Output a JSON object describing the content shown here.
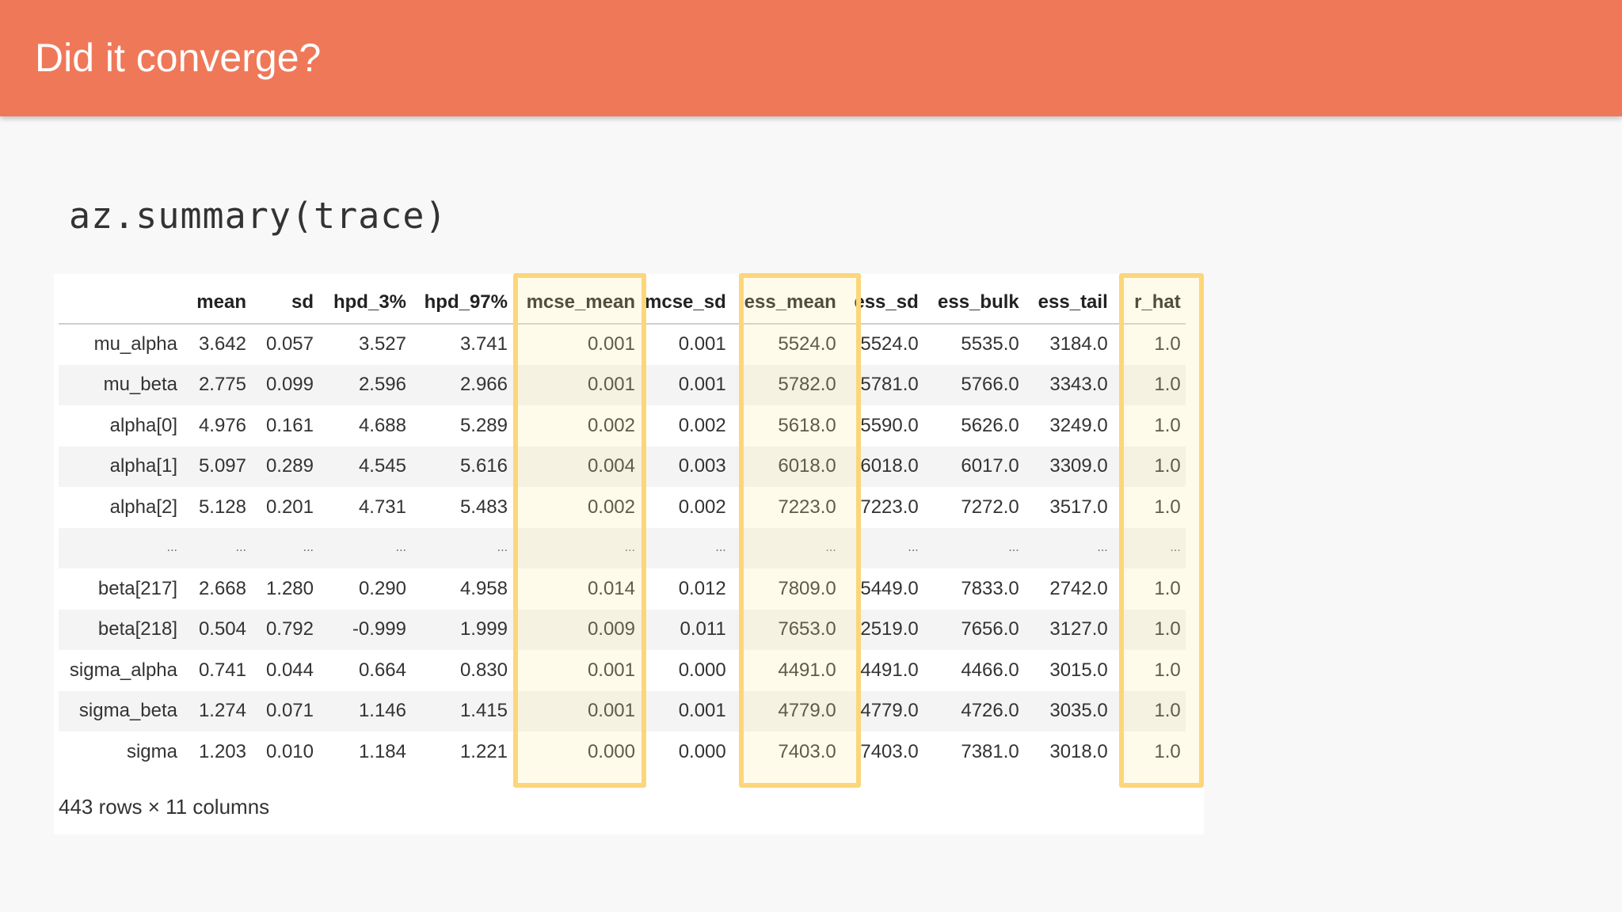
{
  "slide": {
    "title": "Did it converge?",
    "code": "az.summary(trace)"
  },
  "table": {
    "columns": [
      "",
      "mean",
      "sd",
      "hpd_3%",
      "hpd_97%",
      "mcse_mean",
      "mcse_sd",
      "ess_mean",
      "ess_sd",
      "ess_bulk",
      "ess_tail",
      "r_hat"
    ],
    "rows": [
      [
        "mu_alpha",
        "3.642",
        "0.057",
        "3.527",
        "3.741",
        "0.001",
        "0.001",
        "5524.0",
        "5524.0",
        "5535.0",
        "3184.0",
        "1.0"
      ],
      [
        "mu_beta",
        "2.775",
        "0.099",
        "2.596",
        "2.966",
        "0.001",
        "0.001",
        "5782.0",
        "5781.0",
        "5766.0",
        "3343.0",
        "1.0"
      ],
      [
        "alpha[0]",
        "4.976",
        "0.161",
        "4.688",
        "5.289",
        "0.002",
        "0.002",
        "5618.0",
        "5590.0",
        "5626.0",
        "3249.0",
        "1.0"
      ],
      [
        "alpha[1]",
        "5.097",
        "0.289",
        "4.545",
        "5.616",
        "0.004",
        "0.003",
        "6018.0",
        "6018.0",
        "6017.0",
        "3309.0",
        "1.0"
      ],
      [
        "alpha[2]",
        "5.128",
        "0.201",
        "4.731",
        "5.483",
        "0.002",
        "0.002",
        "7223.0",
        "7223.0",
        "7272.0",
        "3517.0",
        "1.0"
      ],
      [
        "...",
        "...",
        "...",
        "...",
        "...",
        "...",
        "...",
        "...",
        "...",
        "...",
        "...",
        "..."
      ],
      [
        "beta[217]",
        "2.668",
        "1.280",
        "0.290",
        "4.958",
        "0.014",
        "0.012",
        "7809.0",
        "5449.0",
        "7833.0",
        "2742.0",
        "1.0"
      ],
      [
        "beta[218]",
        "0.504",
        "0.792",
        "-0.999",
        "1.999",
        "0.009",
        "0.011",
        "7653.0",
        "2519.0",
        "7656.0",
        "3127.0",
        "1.0"
      ],
      [
        "sigma_alpha",
        "0.741",
        "0.044",
        "0.664",
        "0.830",
        "0.001",
        "0.000",
        "4491.0",
        "4491.0",
        "4466.0",
        "3015.0",
        "1.0"
      ],
      [
        "sigma_beta",
        "1.274",
        "0.071",
        "1.146",
        "1.415",
        "0.001",
        "0.001",
        "4779.0",
        "4779.0",
        "4726.0",
        "3035.0",
        "1.0"
      ],
      [
        "sigma",
        "1.203",
        "0.010",
        "1.184",
        "1.221",
        "0.000",
        "0.000",
        "7403.0",
        "7403.0",
        "7381.0",
        "3018.0",
        "1.0"
      ]
    ],
    "highlighted_columns": [
      "mcse_mean",
      "ess_mean",
      "r_hat"
    ],
    "highlight_color": "#fcd67a",
    "footer": "443 rows × 11 columns"
  },
  "colors": {
    "header_bg": "#ef7859",
    "page_bg": "#f8f8f9"
  }
}
